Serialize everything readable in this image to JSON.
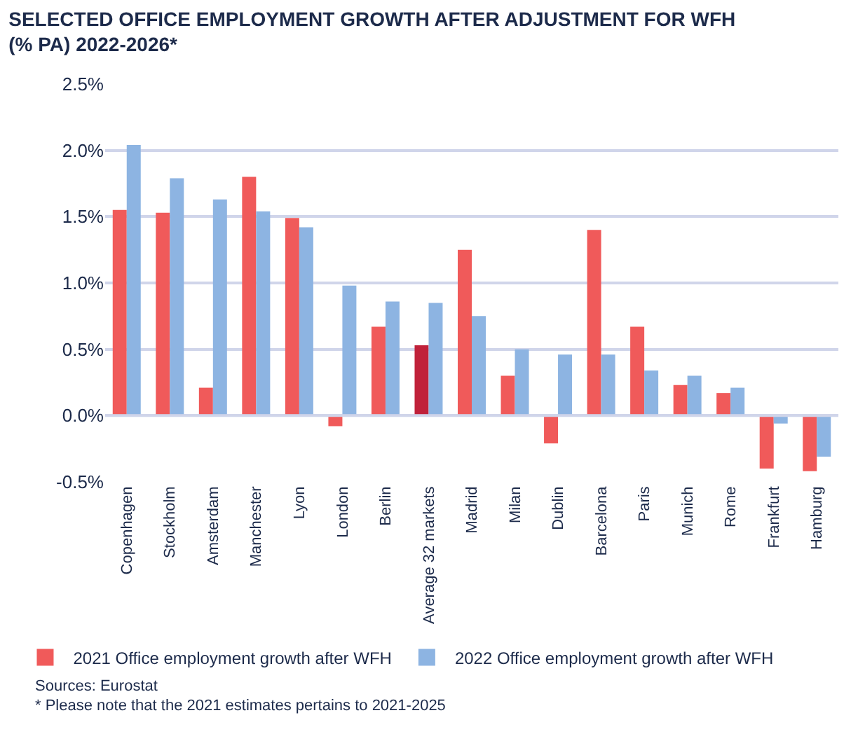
{
  "chart_data": {
    "type": "bar",
    "title": "SELECTED OFFICE EMPLOYMENT GROWTH AFTER ADJUSTMENT FOR WFH\n(% PA) 2022-2026*",
    "categories": [
      "Copenhagen",
      "Stockholm",
      "Amsterdam",
      "Manchester",
      "Lyon",
      "London",
      "Berlin",
      "Average 32 markets",
      "Madrid",
      "Milan",
      "Dublin",
      "Barcelona",
      "Paris",
      "Munich",
      "Rome",
      "Frankfurt",
      "Hamburg"
    ],
    "series": [
      {
        "name": "2021 Office employment growth after WFH",
        "colors": [
          "#f05a5a",
          "#f05a5a",
          "#f05a5a",
          "#f05a5a",
          "#f05a5a",
          "#f05a5a",
          "#f05a5a",
          "#c0213a",
          "#f05a5a",
          "#f05a5a",
          "#f05a5a",
          "#f05a5a",
          "#f05a5a",
          "#f05a5a",
          "#f05a5a",
          "#f05a5a",
          "#f05a5a"
        ],
        "values": [
          1.55,
          1.53,
          0.21,
          1.8,
          1.49,
          -0.08,
          0.67,
          0.53,
          1.25,
          0.3,
          -0.21,
          1.4,
          0.67,
          0.23,
          0.17,
          -0.4,
          -0.42
        ]
      },
      {
        "name": "2022 Office employment growth after WFH",
        "color": "#8db4e2",
        "values": [
          2.04,
          1.79,
          1.63,
          1.54,
          1.42,
          0.98,
          0.86,
          0.85,
          0.75,
          0.5,
          0.46,
          0.46,
          0.34,
          0.3,
          0.21,
          -0.06,
          -0.31
        ]
      }
    ],
    "ylim": [
      -0.5,
      2.5
    ],
    "yticks": [
      {
        "value": -0.5,
        "label": "-0.5%"
      },
      {
        "value": 0,
        "label": "0.0%"
      },
      {
        "value": 0.5,
        "label": "0.5%"
      },
      {
        "value": 1,
        "label": "1.0%"
      },
      {
        "value": 1.5,
        "label": "1.5%"
      },
      {
        "value": 2,
        "label": "2.0%"
      },
      {
        "value": 2.5,
        "label": "2.5%"
      }
    ],
    "grid": "y",
    "legend": "bottom",
    "annotations": [
      "Sources: Eurostat",
      "* Please note that the 2021 estimates pertains to 2021-2025"
    ]
  }
}
